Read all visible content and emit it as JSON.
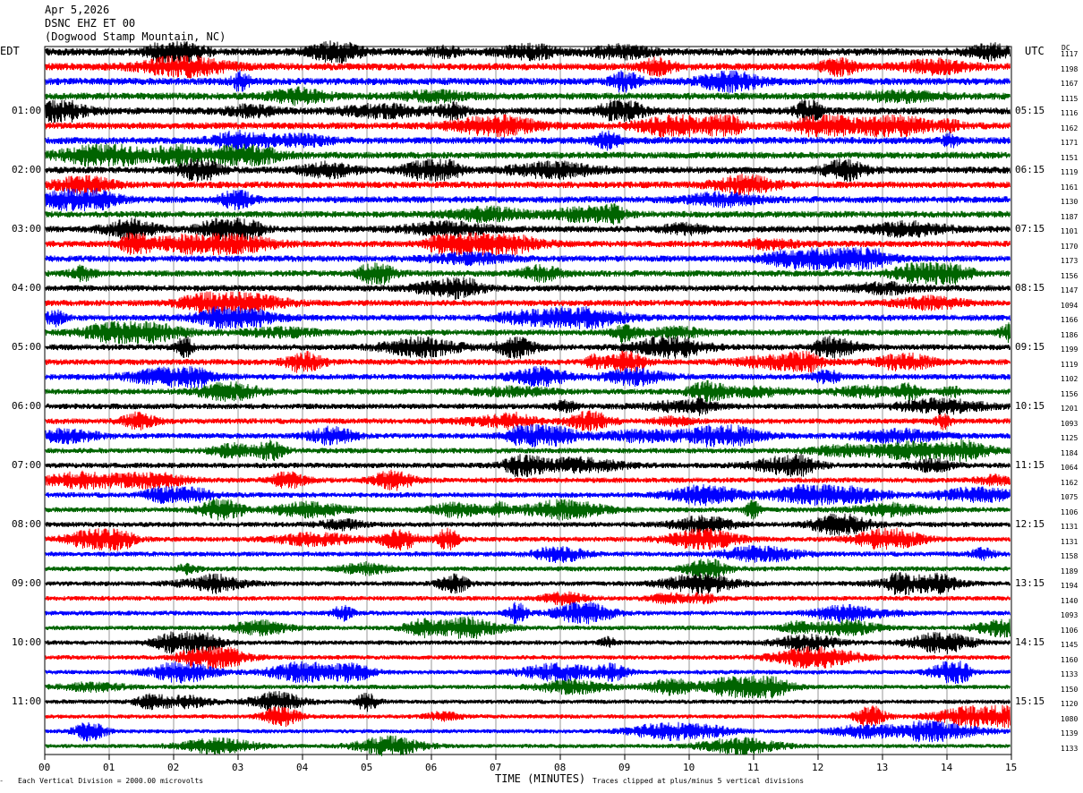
{
  "header": {
    "date": "Apr 5,2026",
    "station": "DSNC EHZ ET 00",
    "location": "(Dogwood Stamp Mountain, NC)"
  },
  "axes": {
    "left_tz": "EDT",
    "right_tz": "UTC",
    "dc_label": "DC",
    "x_title": "TIME (MINUTES)",
    "x_ticks": [
      "00",
      "01",
      "02",
      "03",
      "04",
      "05",
      "06",
      "07",
      "08",
      "09",
      "10",
      "11",
      "12",
      "13",
      "14",
      "15"
    ]
  },
  "footer": {
    "scale_note": "Each Vertical Division = 2000.00 microvolts",
    "clip_note": "Traces clipped at plus/minus 5 vertical divisions"
  },
  "chart_data": {
    "type": "line",
    "title": "DSNC EHZ ET 00 (Dogwood Stamp Mountain, NC)",
    "xlabel": "TIME (MINUTES)",
    "xlim": [
      0,
      15
    ],
    "trace_colors": [
      "#000000",
      "#ff0000",
      "#0000ff",
      "#006400"
    ],
    "grid": true,
    "left_hour_labels": [
      "01:00",
      "02:00",
      "03:00",
      "04:00",
      "05:00",
      "06:00",
      "07:00",
      "08:00",
      "09:00",
      "10:00",
      "11:00"
    ],
    "right_hour_labels": [
      "05:15",
      "06:15",
      "07:15",
      "08:15",
      "09:15",
      "10:15",
      "11:15",
      "12:15",
      "13:15",
      "14:15",
      "15:15"
    ],
    "dc_offsets": [
      "1117",
      "1198",
      "1167",
      "1115",
      "1116",
      "1162",
      "1171",
      "1151",
      "1119",
      "1161",
      "1130",
      "1187",
      "1101",
      "1170",
      "1173",
      "1156",
      "1147",
      "1094",
      "1166",
      "1186",
      "1199",
      "1119",
      "1102",
      "1156",
      "1201",
      "1093",
      "1125",
      "1184",
      "1064",
      "1162",
      "1075",
      "1106",
      "1131",
      "1131",
      "1158",
      "1189",
      "1194",
      "1140",
      "1093",
      "1106",
      "1145",
      "1160",
      "1133",
      "1150",
      "1120",
      "1080",
      "1139",
      "1133"
    ]
  }
}
